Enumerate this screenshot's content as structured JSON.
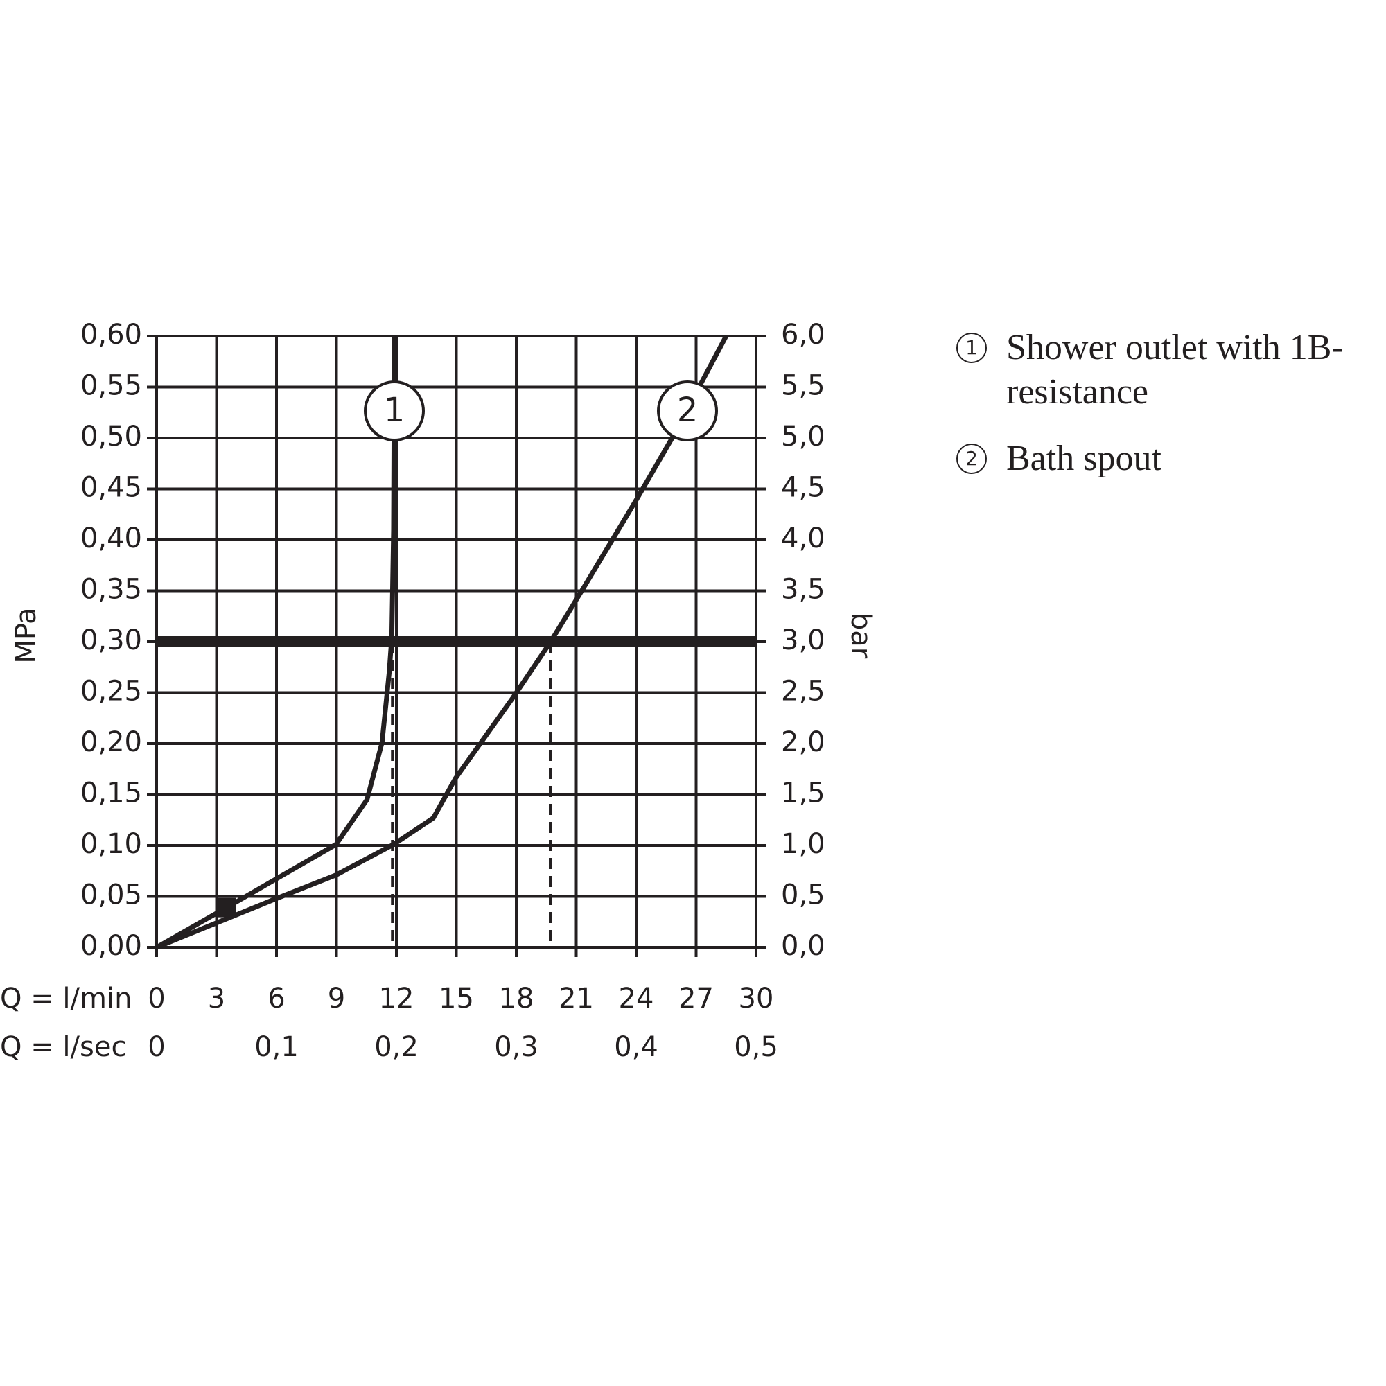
{
  "chart_data": {
    "type": "line",
    "xlabel": "Q = l/min",
    "x2label": "Q = l/sec",
    "ylabel": "MPa",
    "y2label": "bar",
    "xlim": [
      0,
      30
    ],
    "xticks": [
      0,
      3,
      6,
      9,
      12,
      15,
      18,
      21,
      24,
      27,
      30
    ],
    "x2lim": [
      0,
      0.5
    ],
    "x2ticks": [
      0,
      {
        "value": 0.1,
        "label": "0,1"
      },
      {
        "value": 0.2,
        "label": "0,2"
      },
      {
        "value": 0.3,
        "label": "0,3"
      },
      {
        "value": 0.4,
        "label": "0,4"
      },
      {
        "value": 0.5,
        "label": "0,5"
      }
    ],
    "ylim": [
      0,
      0.6
    ],
    "yticks": [
      {
        "value": 0,
        "label": "0,00"
      },
      {
        "value": 0.05,
        "label": "0,05"
      },
      {
        "value": 0.1,
        "label": "0,10"
      },
      {
        "value": 0.15,
        "label": "0,15"
      },
      {
        "value": 0.2,
        "label": "0,20"
      },
      {
        "value": 0.25,
        "label": "0,25"
      },
      {
        "value": 0.3,
        "label": "0,30"
      },
      {
        "value": 0.35,
        "label": "0,35"
      },
      {
        "value": 0.4,
        "label": "0,40"
      },
      {
        "value": 0.45,
        "label": "0,45"
      },
      {
        "value": 0.5,
        "label": "0,50"
      },
      {
        "value": 0.55,
        "label": "0,55"
      },
      {
        "value": 0.6,
        "label": "0,60"
      }
    ],
    "y2lim": [
      0,
      6
    ],
    "y2ticks": [
      {
        "value": 0,
        "label": "0,0"
      },
      {
        "value": 0.5,
        "label": "0,5"
      },
      {
        "value": 1,
        "label": "1,0"
      },
      {
        "value": 1.5,
        "label": "1,5"
      },
      {
        "value": 2,
        "label": "2,0"
      },
      {
        "value": 2.5,
        "label": "2,5"
      },
      {
        "value": 3,
        "label": "3,0"
      },
      {
        "value": 3.5,
        "label": "3,5"
      },
      {
        "value": 4,
        "label": "4,0"
      },
      {
        "value": 4.5,
        "label": "4,5"
      },
      {
        "value": 5,
        "label": "5,0"
      },
      {
        "value": 5.5,
        "label": "5,5"
      },
      {
        "value": 6,
        "label": "6,0"
      }
    ],
    "grid": true,
    "reference_line": 0.3,
    "drop_lines": [
      11.8,
      19.7
    ],
    "point": {
      "x": 3.5,
      "y": 0.039
    },
    "series": [
      {
        "name": "Shower outlet with 1B-resistance",
        "label": "1",
        "color": "#231f20",
        "x": [
          0,
          3.67,
          8.98,
          10.53,
          11.28,
          11.64,
          11.77,
          11.86,
          11.9
        ],
        "values": [
          0,
          0.041,
          0.101,
          0.145,
          0.201,
          0.27,
          0.305,
          0.41,
          0.6
        ]
      },
      {
        "name": "Bath spout",
        "label": "2",
        "color": "#231f20",
        "x": [
          0,
          5.88,
          8.98,
          11.86,
          13.85,
          14.96,
          17.83,
          19.69,
          21.37,
          24.03,
          25.8,
          28.5
        ],
        "values": [
          0,
          0.047,
          0.071,
          0.101,
          0.127,
          0.166,
          0.245,
          0.299,
          0.353,
          0.44,
          0.5,
          0.6
        ]
      }
    ]
  }
}
